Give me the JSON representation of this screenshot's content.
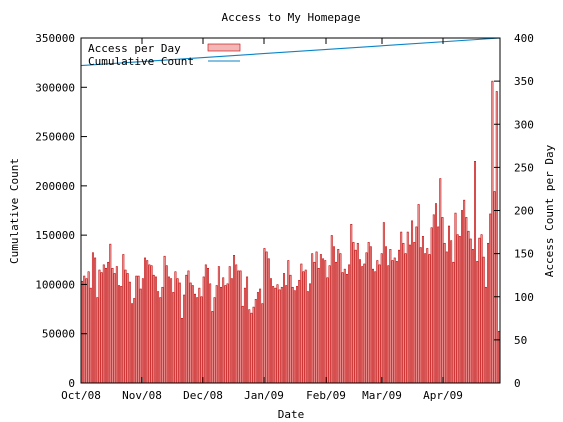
{
  "chart_data": {
    "type": "bar",
    "title": "Access to My Homepage",
    "xlabel": "Date",
    "ylabel_left": "Cumulative Count",
    "ylabel_right": "Access Count per Day",
    "ylim_left": [
      0,
      350000
    ],
    "ylim_right": [
      0,
      400
    ],
    "yticks_left": [
      0,
      50000,
      100000,
      150000,
      200000,
      250000,
      300000,
      350000
    ],
    "yticks_right": [
      0,
      50,
      100,
      150,
      200,
      250,
      300,
      350,
      400
    ],
    "x_start_label": "Oct/08",
    "x_end_label": "",
    "xticks": [
      "Oct/08",
      "Nov/08",
      "Dec/08",
      "Jan/09",
      "Feb/09",
      "Mar/09",
      "Apr/09"
    ],
    "legend_position": "top-left",
    "grid": false,
    "series": [
      {
        "name": "Access per Day",
        "type": "bar",
        "axis": "right",
        "color": "#c00000",
        "fill": "#f4b7b7",
        "values": [
          118,
          124,
          121,
          129,
          110,
          151,
          145,
          99,
          131,
          128,
          137,
          133,
          140,
          161,
          133,
          127,
          135,
          113,
          112,
          149,
          131,
          127,
          117,
          92,
          98,
          124,
          124,
          109,
          121,
          145,
          142,
          137,
          136,
          125,
          123,
          106,
          99,
          111,
          147,
          136,
          123,
          121,
          105,
          129,
          121,
          116,
          75,
          102,
          125,
          130,
          116,
          113,
          103,
          99,
          110,
          100,
          123,
          137,
          133,
          115,
          83,
          99,
          113,
          135,
          111,
          122,
          113,
          115,
          135,
          121,
          148,
          137,
          130,
          130,
          89,
          110,
          123,
          85,
          81,
          88,
          97,
          105,
          109,
          92,
          156,
          152,
          144,
          121,
          112,
          110,
          114,
          108,
          111,
          127,
          113,
          142,
          125,
          111,
          107,
          112,
          119,
          138,
          129,
          131,
          106,
          115,
          150,
          140,
          152,
          133,
          149,
          144,
          142,
          122,
          136,
          171,
          158,
          140,
          155,
          150,
          128,
          132,
          126,
          137,
          184,
          163,
          154,
          162,
          143,
          135,
          138,
          151,
          163,
          158,
          132,
          129,
          142,
          137,
          150,
          186,
          158,
          136,
          155,
          142,
          145,
          141,
          154,
          175,
          162,
          150,
          175,
          160,
          188,
          163,
          181,
          207,
          157,
          170,
          150,
          156,
          149,
          180,
          195,
          208,
          181,
          237,
          192,
          162,
          152,
          182,
          165,
          140,
          197,
          172,
          170,
          200,
          212,
          192,
          176,
          167,
          155,
          257,
          141,
          168,
          172,
          146,
          111,
          162,
          196,
          350,
          222,
          338,
          60
        ]
      },
      {
        "name": "Cumulative Count",
        "type": "line",
        "axis": "left",
        "color": "#0a84c8",
        "x_range": [
          0,
          193
        ],
        "values_at_ends": [
          322000,
          350000
        ]
      }
    ]
  }
}
